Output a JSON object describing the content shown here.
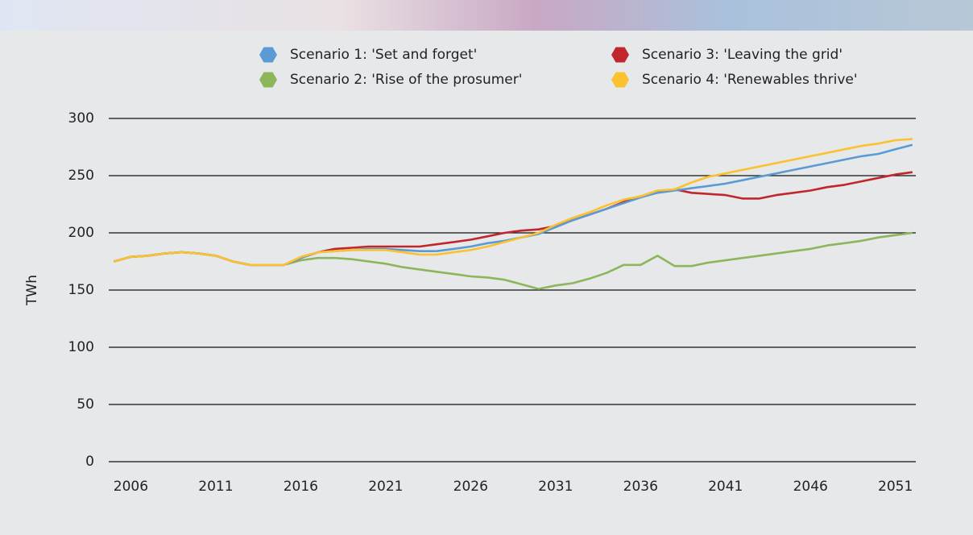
{
  "chart_data": {
    "type": "line",
    "y_label": "TWh",
    "x": [
      2005,
      2006,
      2007,
      2008,
      2009,
      2010,
      2011,
      2012,
      2013,
      2014,
      2015,
      2016,
      2017,
      2018,
      2019,
      2020,
      2021,
      2022,
      2023,
      2024,
      2025,
      2026,
      2027,
      2028,
      2029,
      2030,
      2031,
      2032,
      2033,
      2034,
      2035,
      2036,
      2037,
      2038,
      2039,
      2040,
      2041,
      2042,
      2043,
      2044,
      2045,
      2046,
      2047,
      2048,
      2049,
      2050,
      2051,
      2052
    ],
    "xlim": [
      2004.7,
      2052.2
    ],
    "xticks": [
      2006,
      2011,
      2016,
      2021,
      2026,
      2031,
      2036,
      2041,
      2046,
      2051
    ],
    "ylim": [
      0,
      300
    ],
    "yticks": [
      0,
      50,
      100,
      150,
      200,
      250,
      300
    ],
    "grid": true,
    "legend": "top",
    "series": [
      {
        "name": "Scenario 1: 'Set and forget'",
        "color": "#5b9bd5",
        "values": [
          175,
          179,
          180,
          182,
          183,
          182,
          180,
          175,
          172,
          172,
          172,
          178,
          183,
          184,
          185,
          186,
          186,
          185,
          184,
          184,
          186,
          188,
          191,
          193,
          196,
          199,
          205,
          211,
          216,
          221,
          226,
          231,
          235,
          237,
          239,
          241,
          243,
          246,
          249,
          252,
          255,
          258,
          261,
          264,
          267,
          269,
          273,
          277
        ]
      },
      {
        "name": "Scenario 2: 'Rise of the prosumer'",
        "color": "#8cb65a",
        "values": [
          175,
          179,
          180,
          182,
          183,
          182,
          180,
          175,
          172,
          172,
          172,
          176,
          178,
          178,
          177,
          175,
          173,
          170,
          168,
          166,
          164,
          162,
          161,
          159,
          155,
          151,
          154,
          156,
          160,
          165,
          172,
          172,
          180,
          171,
          171,
          174,
          176,
          178,
          180,
          182,
          184,
          186,
          189,
          191,
          193,
          196,
          198,
          200
        ]
      },
      {
        "name": "Scenario 3: 'Leaving the grid'",
        "color": "#c0272d",
        "values": [
          175,
          179,
          180,
          182,
          183,
          182,
          180,
          175,
          172,
          172,
          172,
          178,
          183,
          186,
          187,
          188,
          188,
          188,
          188,
          190,
          192,
          194,
          197,
          200,
          202,
          203,
          206,
          211,
          216,
          221,
          227,
          232,
          236,
          238,
          235,
          234,
          233,
          230,
          230,
          233,
          235,
          237,
          240,
          242,
          245,
          248,
          251,
          253
        ]
      },
      {
        "name": "Scenario 4: 'Renewables thrive'",
        "color": "#fcc12e",
        "values": [
          175,
          179,
          180,
          182,
          183,
          182,
          180,
          175,
          172,
          172,
          172,
          179,
          183,
          184,
          185,
          185,
          185,
          183,
          181,
          181,
          183,
          185,
          188,
          192,
          196,
          200,
          207,
          213,
          218,
          224,
          229,
          232,
          237,
          238,
          244,
          249,
          252,
          255,
          258,
          261,
          264,
          267,
          270,
          273,
          276,
          278,
          281,
          282
        ]
      }
    ]
  }
}
